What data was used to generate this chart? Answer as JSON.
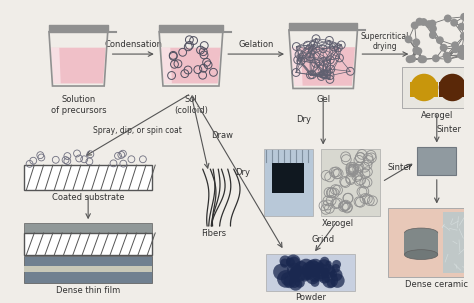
{
  "bg_color": "#f0ede8",
  "text_color": "#333333",
  "arrow_color": "#555555",
  "beaker_liquid": "#f0c0c8",
  "beaker_rim": "#909090",
  "beaker_body": "#c0c0c0",
  "sol_particle": "#606080",
  "gel_network": "#606070",
  "aerogel_network": "#707070",
  "labels": {
    "solution": "Solution\nof precursors",
    "sol": "Sol\n(colloid)",
    "gel": "Gel",
    "aerogel": "Aerogel",
    "coated": "Coated substrate",
    "dense_film": "Dense thin film",
    "fibers": "Fibers",
    "xerogel": "Xerogel",
    "powder": "Powder",
    "dense_ceramic": "Dense ceramic"
  },
  "arrow_labels": {
    "condensation": "Condensation",
    "gelation": "Gelation",
    "supercritical": "Supercritical\ndrying",
    "dry_xerogel": "Dry",
    "grind": "Grind",
    "sinter_xero": "Sinter",
    "sinter_aero": "Sinter",
    "spray": "Spray, dip, or spin coat",
    "draw": "Draw",
    "dry_fiber": "Dry"
  }
}
